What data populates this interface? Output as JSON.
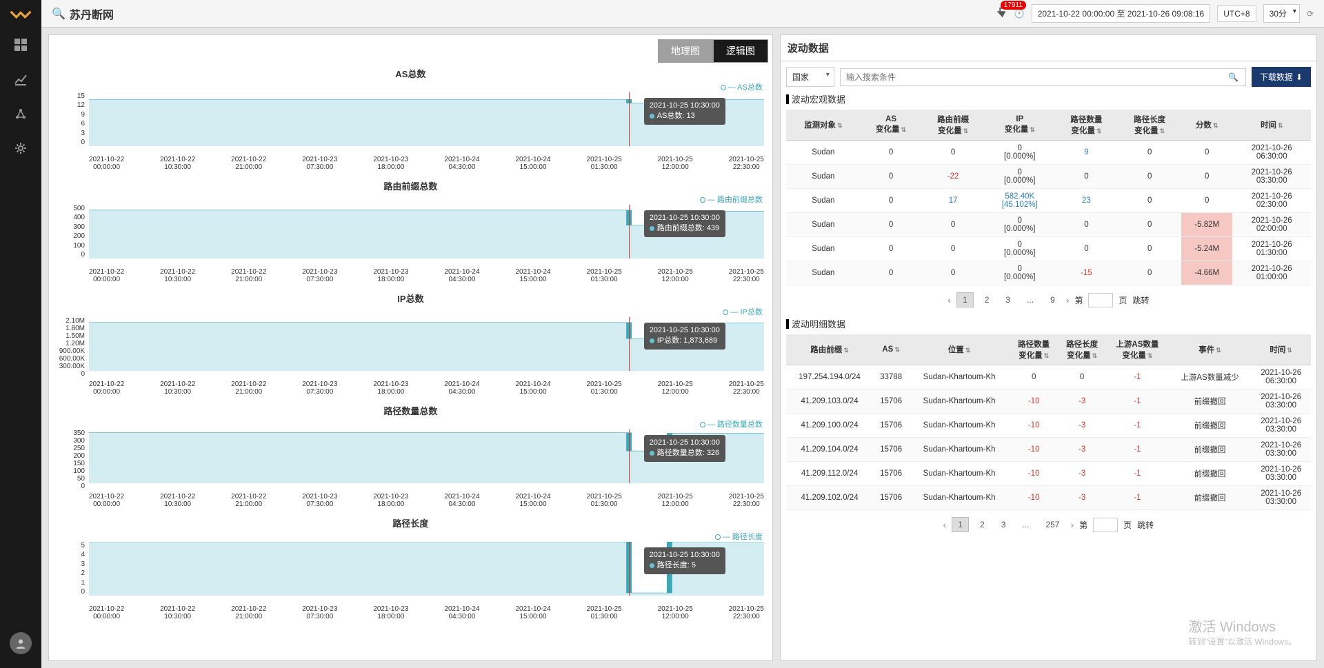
{
  "topbar": {
    "title": "苏丹断网",
    "badge": "17911",
    "timerange": "2021-10-22 00:00:00 至 2021-10-26 09:08:16",
    "tz": "UTC+8",
    "interval": "30分"
  },
  "viewtabs": {
    "geo": "地理图",
    "logic": "逻辑图"
  },
  "xaxis": [
    {
      "d": "2021-10-22",
      "t": "00:00:00"
    },
    {
      "d": "2021-10-22",
      "t": "10:30:00"
    },
    {
      "d": "2021-10-22",
      "t": "21:00:00"
    },
    {
      "d": "2021-10-23",
      "t": "07:30:00"
    },
    {
      "d": "2021-10-23",
      "t": "18:00:00"
    },
    {
      "d": "2021-10-24",
      "t": "04:30:00"
    },
    {
      "d": "2021-10-24",
      "t": "15:00:00"
    },
    {
      "d": "2021-10-25",
      "t": "01:30:00"
    },
    {
      "d": "2021-10-25",
      "t": "12:00:00"
    },
    {
      "d": "2021-10-25",
      "t": "22:30:00"
    }
  ],
  "charts": [
    {
      "title": "AS总数",
      "legend": "AS总数",
      "yticks": [
        "15",
        "12",
        "9",
        "6",
        "3",
        "0"
      ],
      "tt_time": "2021-10-25 10:30:00",
      "tt_label": "AS总数: 13",
      "drop_x": 0.8,
      "level_hi": 0.87,
      "level_lo": 0.8,
      "final": 0.87,
      "fill": "#c2e6ec",
      "stroke": "#3ba7b8"
    },
    {
      "title": "路由前缀总数",
      "legend": "路由前缀总数",
      "yticks": [
        "500",
        "400",
        "300",
        "200",
        "100",
        "0"
      ],
      "tt_time": "2021-10-25 10:30:00",
      "tt_label": "路由前缀总数: 439",
      "drop_x": 0.8,
      "level_hi": 0.9,
      "level_lo": 0.62,
      "final": 0.88,
      "fill": "#c2e6ec",
      "stroke": "#3ba7b8"
    },
    {
      "title": "IP总数",
      "legend": "IP总数",
      "yticks": [
        "2.10M",
        "1.80M",
        "1.50M",
        "1.20M",
        "900.00K",
        "600.00K",
        "300.00K",
        "0"
      ],
      "tt_time": "2021-10-25 10:30:00",
      "tt_label": "IP总数: 1,873,689",
      "drop_x": 0.8,
      "level_hi": 0.9,
      "level_lo": 0.6,
      "final": 0.89,
      "fill": "#c2e6ec",
      "stroke": "#3ba7b8"
    },
    {
      "title": "路径数量总数",
      "legend": "路径数量总数",
      "yticks": [
        "350",
        "300",
        "250",
        "200",
        "150",
        "100",
        "50",
        "0"
      ],
      "tt_time": "2021-10-25 10:30:00",
      "tt_label": "路径数量总数: 326",
      "drop_x": 0.8,
      "level_hi": 0.94,
      "level_lo": 0.6,
      "final": 0.93,
      "fill": "#c2e6ec",
      "stroke": "#3ba7b8"
    },
    {
      "title": "路径长度",
      "legend": "路径长度",
      "yticks": [
        "5",
        "4",
        "3",
        "2",
        "1",
        "0"
      ],
      "tt_time": "2021-10-25 10:30:00",
      "tt_label": "路径长度: 5",
      "drop_x": 0.8,
      "level_hi": 1.0,
      "level_lo": 0.05,
      "final": 1.0,
      "fill": "#c2e6ec",
      "stroke": "#3ba7b8"
    }
  ],
  "right": {
    "header": "波动数据",
    "filter_sel": "国家",
    "search_placeholder": "输入搜索条件",
    "download": "下载数据",
    "macro_label": "波动宏观数据",
    "detail_label": "波动明细数据"
  },
  "macro": {
    "cols": [
      "监测对象",
      "AS 变化量",
      "路由前缀 变化量",
      "IP 变化量",
      "路径数量 变化量",
      "路径长度 变化量",
      "分数",
      "时间"
    ],
    "rows": [
      {
        "c": [
          "Sudan",
          "0",
          "0",
          "0 [0.000%]",
          "9",
          "0",
          "0",
          "2021-10-26 06:30:00"
        ],
        "cls": [
          "",
          "",
          "",
          "",
          "blue-link",
          "",
          "",
          ""
        ]
      },
      {
        "c": [
          "Sudan",
          "0",
          "-22",
          "0 [0.000%]",
          "0",
          "0",
          "0",
          "2021-10-26 03:30:00"
        ],
        "cls": [
          "",
          "",
          "red-txt",
          "",
          "",
          "",
          "",
          ""
        ]
      },
      {
        "c": [
          "Sudan",
          "0",
          "17",
          "582.40K [45.102%]",
          "23",
          "0",
          "0",
          "2021-10-26 02:30:00"
        ],
        "cls": [
          "",
          "",
          "blue-link",
          "blue-link",
          "blue-link",
          "",
          "",
          ""
        ]
      },
      {
        "c": [
          "Sudan",
          "0",
          "0",
          "0 [0.000%]",
          "0",
          "0",
          "-5.82M",
          "2021-10-26 02:00:00"
        ],
        "cls": [
          "",
          "",
          "",
          "",
          "",
          "",
          "red-bg",
          ""
        ]
      },
      {
        "c": [
          "Sudan",
          "0",
          "0",
          "0 [0.000%]",
          "0",
          "0",
          "-5.24M",
          "2021-10-26 01:30:00"
        ],
        "cls": [
          "",
          "",
          "",
          "",
          "",
          "",
          "red-bg",
          ""
        ]
      },
      {
        "c": [
          "Sudan",
          "0",
          "0",
          "0 [0.000%]",
          "-15",
          "0",
          "-4.66M",
          "2021-10-26 01:00:00"
        ],
        "cls": [
          "",
          "",
          "",
          "",
          "red-txt",
          "",
          "red-bg",
          ""
        ]
      }
    ],
    "pager": {
      "pages": [
        "1",
        "2",
        "3",
        "...",
        "9"
      ],
      "label_pre": "第",
      "label_page": "页",
      "label_jump": "跳转"
    }
  },
  "detail": {
    "cols": [
      "路由前缀",
      "AS",
      "位置",
      "路径数量 变化量",
      "路径长度 变化量",
      "上游AS数量 变化量",
      "事件",
      "时间"
    ],
    "rows": [
      {
        "c": [
          "197.254.194.0/24",
          "33788",
          "Sudan-Khartoum-Kh",
          "0",
          "0",
          "-1",
          "上游AS数量减少",
          "2021-10-26 06:30:00"
        ],
        "cls": [
          "",
          "",
          "",
          "",
          "",
          "red-txt",
          "",
          ""
        ]
      },
      {
        "c": [
          "41.209.103.0/24",
          "15706",
          "Sudan-Khartoum-Kh",
          "-10",
          "-3",
          "-1",
          "前缀撤回",
          "2021-10-26 03:30:00"
        ],
        "cls": [
          "",
          "",
          "",
          "red-txt",
          "red-txt",
          "red-txt",
          "",
          ""
        ]
      },
      {
        "c": [
          "41.209.100.0/24",
          "15706",
          "Sudan-Khartoum-Kh",
          "-10",
          "-3",
          "-1",
          "前缀撤回",
          "2021-10-26 03:30:00"
        ],
        "cls": [
          "",
          "",
          "",
          "red-txt",
          "red-txt",
          "red-txt",
          "",
          ""
        ]
      },
      {
        "c": [
          "41.209.104.0/24",
          "15706",
          "Sudan-Khartoum-Kh",
          "-10",
          "-3",
          "-1",
          "前缀撤回",
          "2021-10-26 03:30:00"
        ],
        "cls": [
          "",
          "",
          "",
          "red-txt",
          "red-txt",
          "red-txt",
          "",
          ""
        ]
      },
      {
        "c": [
          "41.209.112.0/24",
          "15706",
          "Sudan-Khartoum-Kh",
          "-10",
          "-3",
          "-1",
          "前缀撤回",
          "2021-10-26 03:30:00"
        ],
        "cls": [
          "",
          "",
          "",
          "red-txt",
          "red-txt",
          "red-txt",
          "",
          ""
        ]
      },
      {
        "c": [
          "41.209.102.0/24",
          "15706",
          "Sudan-Khartoum-Kh",
          "-10",
          "-3",
          "-1",
          "前缀撤回",
          "2021-10-26 03:30:00"
        ],
        "cls": [
          "",
          "",
          "",
          "red-txt",
          "red-txt",
          "red-txt",
          "",
          ""
        ]
      }
    ],
    "pager": {
      "pages": [
        "1",
        "2",
        "3",
        "...",
        "257"
      ],
      "label_pre": "第",
      "label_page": "页",
      "label_jump": "跳转"
    }
  },
  "watermark": {
    "line1": "激活 Windows",
    "line2": "转到\"设置\"以激活 Windows。"
  }
}
